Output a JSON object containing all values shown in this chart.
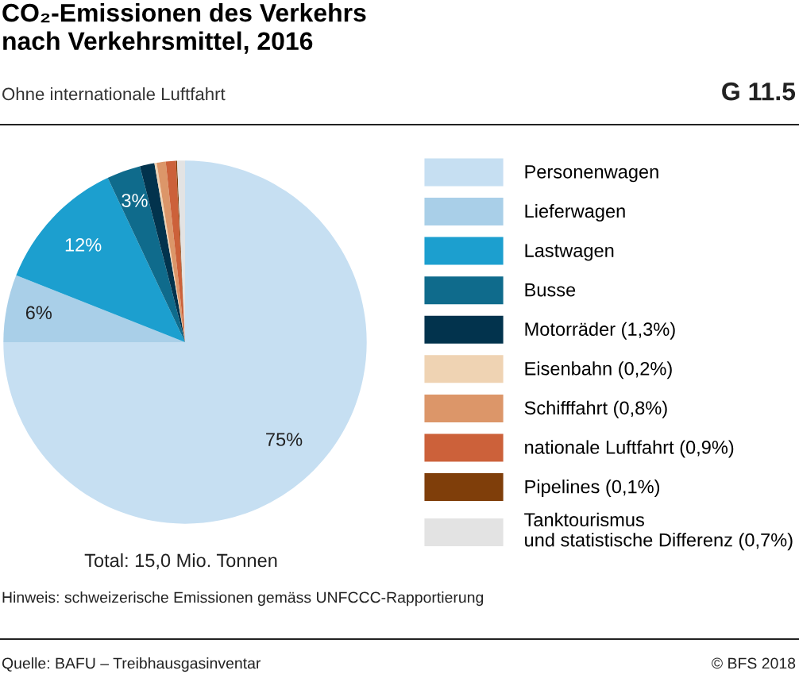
{
  "chart_data": {
    "type": "pie",
    "title": "CO₂-Emissionen des Verkehrs\nnach Verkehrsmittel, 2016",
    "subtitle": "Ohne internationale Luftfahrt",
    "categories": [
      "Personenwagen",
      "Lieferwagen",
      "Lastwagen",
      "Busse",
      "Motorräder (1,3%)",
      "Eisenbahn (0,2%)",
      "Schifffahrt (0,8%)",
      "nationale Luftfahrt (0,9%)",
      "Pipelines (0,1%)",
      "Tanktourismus\nund statistische Differenz (0,7%)"
    ],
    "values": [
      75,
      6,
      12,
      3,
      1.3,
      0.2,
      0.8,
      0.9,
      0.1,
      0.7
    ],
    "value_labels": [
      "75%",
      "6%",
      "12%",
      "3%",
      null,
      null,
      null,
      null,
      null,
      null
    ],
    "colors": [
      "#c6dff2",
      "#a9cfe8",
      "#1c9fcf",
      "#0f6b8c",
      "#02334d",
      "#efd3b3",
      "#dc9669",
      "#cc613a",
      "#7f3e0a",
      "#e3e3e3"
    ],
    "legend": "right",
    "annotations": [
      "G 11.5",
      "Total: 15,0 Mio. Tonnen",
      "Hinweis: schweizerische Emissionen gemäss UNFCCC-Rapportierung",
      "Quelle: BAFU – Treibhausgasinventar",
      "© BFS 2018"
    ]
  }
}
